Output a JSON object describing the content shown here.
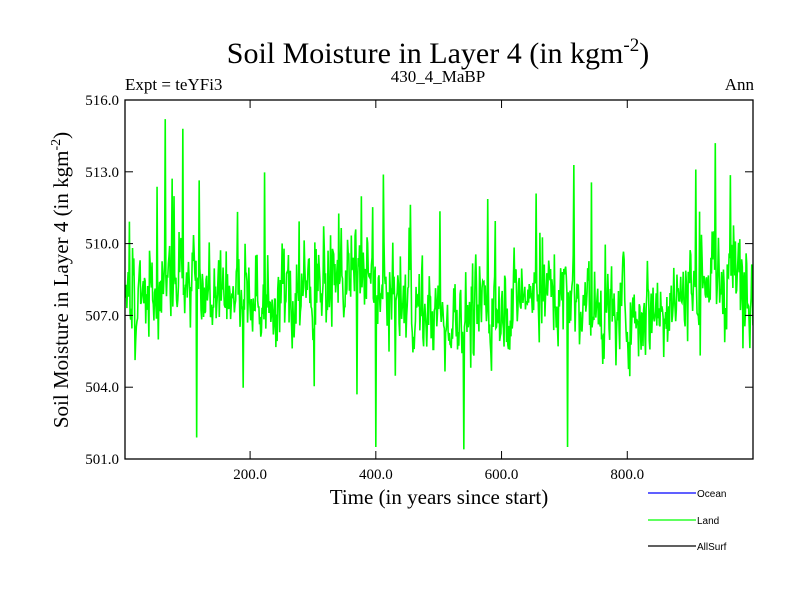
{
  "chart_data": {
    "type": "line",
    "title": "Soil Moisture in Layer 4 (in kgm",
    "title_sup": "-2",
    "title_close": ")",
    "subtitle_left": "Expt = teYFi3",
    "subtitle_center": "430_4_MaBP",
    "subtitle_right": "Ann",
    "xlabel": "Time (in years since start)",
    "ylabel": "Soil Moisture in Layer 4 (in kgm",
    "ylabel_sup": "-2",
    "ylabel_close": ")",
    "xlim": [
      1,
      1000
    ],
    "ylim": [
      501.0,
      516.0
    ],
    "xticks": [
      200,
      400,
      600,
      800
    ],
    "xtick_labels": [
      "200.0",
      "400.0",
      "600.0",
      "800.0"
    ],
    "yticks": [
      501,
      504,
      507,
      510,
      513,
      516
    ],
    "ytick_labels": [
      "501.0",
      "504.0",
      "507.0",
      "510.0",
      "513.0",
      "516.0"
    ],
    "series": [
      {
        "name": "Ocean",
        "color": "#0000ff",
        "values": []
      },
      {
        "name": "Land",
        "color": "#00ff00",
        "values": "annual values fluctuating roughly between 501.5 and 515.2 around a mean near 507.8 (generated below)"
      },
      {
        "name": "AllSurf",
        "color": "#000000",
        "values": []
      }
    ],
    "land_stats": {
      "n": 1000,
      "mean": 507.8,
      "min": 501.4,
      "max": 515.2
    },
    "land_peaks": [
      {
        "x": 65,
        "y": 515.2
      },
      {
        "x": 93,
        "y": 514.8
      },
      {
        "x": 115,
        "y": 501.9
      },
      {
        "x": 400,
        "y": 501.5
      },
      {
        "x": 540,
        "y": 501.4
      },
      {
        "x": 705,
        "y": 501.5
      },
      {
        "x": 940,
        "y": 514.2
      }
    ]
  }
}
